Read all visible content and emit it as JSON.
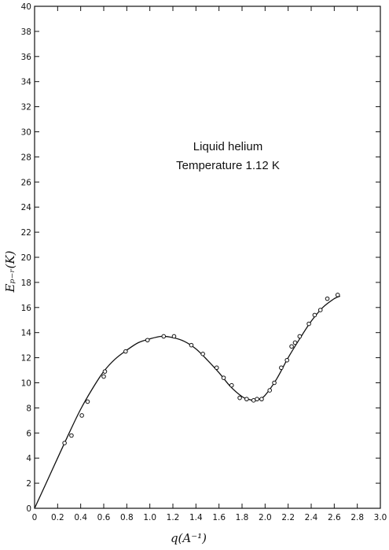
{
  "chart_data": {
    "type": "scatter",
    "title": "",
    "annotation_lines": [
      "Liquid helium",
      "Temperature 1.12 K"
    ],
    "xlabel": "q(A⁻¹)",
    "ylabel": "Eₚ₋ᵣ(K)",
    "xlim": [
      0,
      3.0
    ],
    "ylim": [
      0,
      40
    ],
    "x_ticks": [
      0,
      0.2,
      0.4,
      0.6,
      0.8,
      1.0,
      1.2,
      1.4,
      1.6,
      1.8,
      2.0,
      2.2,
      2.4,
      2.6,
      2.8,
      3.0
    ],
    "x_tick_labels": [
      "0",
      "0.2",
      "0.4",
      "0.6",
      "0.8",
      "1.0",
      "1.2",
      "1.4",
      "1.6",
      "1.8",
      "2.0",
      "2.2",
      "2.4",
      "2.6",
      "2.8",
      "3.0"
    ],
    "y_ticks": [
      0,
      2,
      4,
      6,
      8,
      10,
      12,
      14,
      16,
      18,
      20,
      22,
      24,
      26,
      28,
      30,
      32,
      34,
      36,
      38,
      40
    ],
    "y_tick_labels": [
      "0",
      "2",
      "4",
      "6",
      "8",
      "10",
      "12",
      "14",
      "16",
      "18",
      "20",
      "22",
      "24",
      "26",
      "28",
      "30",
      "32",
      "34",
      "36",
      "38",
      "40"
    ],
    "grid": false,
    "series": [
      {
        "kind": "points",
        "marker": "open-circle",
        "x": [
          0.26,
          0.32,
          0.41,
          0.46,
          0.6,
          0.61,
          0.79,
          0.98,
          1.12,
          1.21,
          1.36,
          1.46,
          1.58,
          1.64,
          1.71,
          1.78,
          1.84,
          1.9,
          1.93,
          1.97,
          2.04,
          2.08,
          2.14,
          2.19,
          2.23,
          2.26,
          2.3,
          2.38,
          2.43,
          2.48,
          2.54,
          2.63
        ],
        "y": [
          5.2,
          5.8,
          7.4,
          8.5,
          10.5,
          10.9,
          12.5,
          13.4,
          13.7,
          13.7,
          13.0,
          12.3,
          11.2,
          10.4,
          9.8,
          8.8,
          8.7,
          8.6,
          8.7,
          8.7,
          9.4,
          10.0,
          11.2,
          11.8,
          12.9,
          13.2,
          13.7,
          14.7,
          15.4,
          15.8,
          16.7,
          17.0
        ]
      },
      {
        "kind": "curve",
        "x": [
          0,
          0.1,
          0.2,
          0.3,
          0.4,
          0.5,
          0.6,
          0.7,
          0.8,
          0.9,
          1.0,
          1.1,
          1.2,
          1.3,
          1.4,
          1.5,
          1.6,
          1.7,
          1.8,
          1.85,
          1.9,
          1.95,
          2.0,
          2.1,
          2.2,
          2.3,
          2.4,
          2.5,
          2.6,
          2.65
        ],
        "y": [
          0,
          2.0,
          4.0,
          6.0,
          7.9,
          9.5,
          10.9,
          11.9,
          12.6,
          13.2,
          13.5,
          13.7,
          13.6,
          13.3,
          12.7,
          11.8,
          10.8,
          9.7,
          8.9,
          8.7,
          8.6,
          8.7,
          9.0,
          10.3,
          12.0,
          13.5,
          14.9,
          16.0,
          16.7,
          16.9
        ]
      }
    ]
  }
}
